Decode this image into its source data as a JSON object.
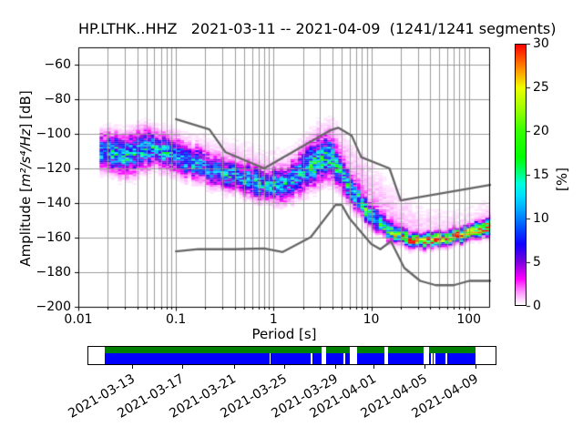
{
  "title": "HP.LTHK..HHZ   2021-03-11 -- 2021-04-09  (1241/1241 segments)",
  "chart_data": {
    "type": "heatmap",
    "title": "HP.LTHK..HHZ   2021-03-11 -- 2021-04-09  (1241/1241 segments)",
    "station": "HP.LTHK..HHZ",
    "date_range": "2021-03-11 -- 2021-04-09",
    "segments": "1241/1241 segments",
    "xlabel": "Period [s]",
    "ylabel": "Amplitude [m²/s⁴/Hz] [dB]",
    "ylabel_parts": {
      "prefix": "Amplitude [",
      "math": "m²/s⁴/Hz",
      "suffix": "] [dB]"
    },
    "xscale": "log",
    "xlim": [
      0.01,
      165
    ],
    "ylim": [
      -200,
      -50
    ],
    "grid": true,
    "xticks": [
      {
        "label": "0.01",
        "value": 0.01
      },
      {
        "label": "0.1",
        "value": 0.1
      },
      {
        "label": "1",
        "value": 1
      },
      {
        "label": "10",
        "value": 10
      },
      {
        "label": "100",
        "value": 100
      }
    ],
    "yticks": [
      {
        "label": "−60",
        "value": -60
      },
      {
        "label": "−80",
        "value": -80
      },
      {
        "label": "−100",
        "value": -100
      },
      {
        "label": "−120",
        "value": -120
      },
      {
        "label": "−140",
        "value": -140
      },
      {
        "label": "−160",
        "value": -160
      },
      {
        "label": "−180",
        "value": -180
      },
      {
        "label": "−200",
        "value": -200
      }
    ],
    "colorbar": {
      "label": "[%]",
      "vmin": 0,
      "vmax": 30,
      "ticks": [
        0,
        5,
        10,
        15,
        20,
        25,
        30
      ]
    },
    "colormap": {
      "name": "pqlx",
      "stops": [
        [
          0.0,
          "#ffffff"
        ],
        [
          0.017,
          "#ffddff"
        ],
        [
          0.033,
          "#ffbbff"
        ],
        [
          0.067,
          "#ff66ff"
        ],
        [
          0.1,
          "#ff00ff"
        ],
        [
          0.167,
          "#7700dd"
        ],
        [
          0.233,
          "#1100ff"
        ],
        [
          0.3,
          "#0055ff"
        ],
        [
          0.367,
          "#00aaff"
        ],
        [
          0.417,
          "#00ddff"
        ],
        [
          0.467,
          "#00ffdd"
        ],
        [
          0.5,
          "#00ff88"
        ],
        [
          0.567,
          "#00ff00"
        ],
        [
          0.667,
          "#33ff00"
        ],
        [
          0.75,
          "#99ff00"
        ],
        [
          0.833,
          "#eeff00"
        ],
        [
          0.9,
          "#ff9900"
        ],
        [
          1.0,
          "#ff0000"
        ]
      ]
    },
    "noise_models": {
      "color": "#666666",
      "nhnm": [
        [
          0.1,
          -91.5
        ],
        [
          0.22,
          -97.4
        ],
        [
          0.32,
          -110.5
        ],
        [
          0.8,
          -120.0
        ],
        [
          3.8,
          -98.0
        ],
        [
          4.6,
          -96.5
        ],
        [
          6.3,
          -101.0
        ],
        [
          7.9,
          -113.5
        ],
        [
          15.4,
          -120.0
        ],
        [
          20.0,
          -138.5
        ],
        [
          165.0,
          -129.6
        ]
      ],
      "nlnm": [
        [
          0.1,
          -168.0
        ],
        [
          0.17,
          -166.7
        ],
        [
          0.4,
          -166.7
        ],
        [
          0.8,
          -166.2
        ],
        [
          1.24,
          -168.3
        ],
        [
          2.4,
          -159.7
        ],
        [
          4.3,
          -141.1
        ],
        [
          5.0,
          -141.1
        ],
        [
          6.0,
          -149.0
        ],
        [
          10.0,
          -163.7
        ],
        [
          12.4,
          -166.7
        ],
        [
          15.9,
          -162.1
        ],
        [
          21.8,
          -177.5
        ],
        [
          31.7,
          -185.0
        ],
        [
          45.8,
          -187.5
        ],
        [
          70.0,
          -187.5
        ],
        [
          101.0,
          -185.0
        ],
        [
          165.0,
          -185.0
        ]
      ]
    },
    "density": {
      "description": "PPSD probability density: mode amplitude ridge vs period with spread; percentages per 1 dB x 1/8 octave bin",
      "period_start": 0.0165,
      "period_end": 165,
      "period": [
        0.017,
        0.022,
        0.03,
        0.04,
        0.05,
        0.065,
        0.08,
        0.1,
        0.13,
        0.18,
        0.25,
        0.35,
        0.5,
        0.7,
        0.9,
        1.2,
        1.6,
        2.1,
        2.7,
        3.3,
        4.0,
        4.8,
        6.0,
        7.5,
        9.0,
        11,
        14,
        18,
        23,
        30,
        40,
        55,
        75,
        100,
        135,
        165
      ],
      "mode_db": [
        -110,
        -111.5,
        -112,
        -110,
        -108.5,
        -109.5,
        -111,
        -113.5,
        -116,
        -118.5,
        -121,
        -123.5,
        -126.5,
        -128.5,
        -129.5,
        -129,
        -125,
        -120,
        -115.5,
        -113.5,
        -116,
        -123,
        -132,
        -140,
        -146.5,
        -151,
        -155,
        -158.5,
        -161,
        -161.5,
        -161,
        -160,
        -158.5,
        -157,
        -155,
        -153.5
      ],
      "peak_pct": [
        9,
        10,
        10,
        11,
        11,
        10,
        10,
        10,
        9.5,
        9.5,
        9.5,
        9.5,
        10,
        10,
        10,
        10,
        10,
        11,
        12,
        12,
        11,
        10,
        11,
        12,
        13,
        13,
        14,
        17,
        22,
        26,
        28,
        28,
        27,
        26,
        25,
        25
      ],
      "sigma_db": [
        5,
        5.5,
        5.5,
        5.5,
        5,
        5,
        5,
        4.8,
        4.6,
        4.5,
        4.5,
        4.5,
        4.5,
        4.5,
        4.5,
        5,
        5.5,
        6,
        6.5,
        6.5,
        6,
        5,
        4.2,
        3.6,
        3.2,
        3,
        2.8,
        2.4,
        2.2,
        2,
        2,
        2,
        2,
        2.1,
        2.3,
        2.5
      ],
      "halo_pct": [
        0.7,
        0.9,
        1.0,
        1.0,
        1.0,
        0.9,
        0.9,
        0.9,
        0.9,
        0.9,
        0.9,
        0.9,
        0.9,
        0.9,
        0.9,
        0.9,
        1.1,
        1.3,
        1.5,
        1.6,
        1.6,
        1.6,
        1.6,
        1.6,
        1.5,
        1.5,
        1.4,
        1.3,
        1.2,
        1.0,
        0.9,
        0.8,
        0.7,
        0.7,
        0.8,
        0.9
      ],
      "halo_sigma_up": [
        8,
        9,
        9,
        9,
        9,
        8.5,
        8,
        9,
        10,
        11,
        12,
        13,
        13,
        13,
        13,
        12,
        11,
        11,
        12,
        12.5,
        13,
        14,
        15,
        16,
        16,
        16,
        15,
        14,
        13,
        12,
        11,
        10,
        10,
        10,
        10,
        10
      ],
      "halo_sigma_down": [
        7,
        8,
        8,
        8,
        8,
        7.5,
        7,
        7,
        6.5,
        6.5,
        6.5,
        6.5,
        6.5,
        6.5,
        6.5,
        7,
        8,
        9,
        9,
        9,
        8,
        7,
        6,
        5,
        5,
        4.5,
        4,
        4,
        4,
        4,
        4,
        4,
        4,
        4.5,
        5,
        5
      ]
    }
  },
  "coverage": {
    "colors": {
      "processed": "#008000",
      "data": "#0000ff",
      "empty": "#ffffff"
    },
    "green_segments_pct": [
      [
        4.1,
        57.2
      ],
      [
        58.5,
        64.3
      ],
      [
        66.1,
        72.8
      ],
      [
        73.7,
        82.4
      ],
      [
        83.7,
        95.1
      ]
    ],
    "blue_segments_pct": [
      [
        4.1,
        44.5
      ],
      [
        44.84,
        54.7
      ],
      [
        55.04,
        57.2
      ],
      [
        58.5,
        62.7
      ],
      [
        63.04,
        64.3
      ],
      [
        66.1,
        72.8
      ],
      [
        73.7,
        82.4
      ],
      [
        83.7,
        84.2
      ],
      [
        84.54,
        84.8
      ],
      [
        85.14,
        87.7
      ],
      [
        88.04,
        95.1
      ]
    ],
    "date_ticks": [
      {
        "label": "2021-03-13",
        "pos_pct": 10.8
      },
      {
        "label": "2021-03-17",
        "pos_pct": 23.0
      },
      {
        "label": "2021-03-21",
        "pos_pct": 35.7
      },
      {
        "label": "2021-03-25",
        "pos_pct": 48.2
      },
      {
        "label": "2021-03-29",
        "pos_pct": 60.7
      },
      {
        "label": "2021-04-01",
        "pos_pct": 70.1
      },
      {
        "label": "2021-04-05",
        "pos_pct": 82.6
      },
      {
        "label": "2021-04-09",
        "pos_pct": 95.1
      }
    ]
  }
}
